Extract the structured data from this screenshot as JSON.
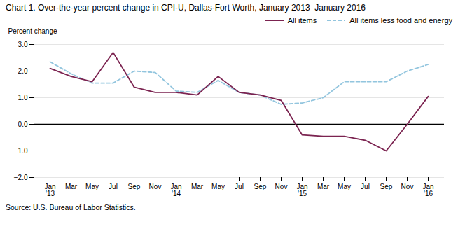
{
  "chart_data": {
    "type": "line",
    "title": "Chart 1. Over-the-year percent change in CPI-U, Dallas-Fort Worth, January 2013–January 2016",
    "ylabel": "Percent change",
    "source": "Source: U.S. Bureau of Labor Statistics.",
    "categories": [
      "Jan\n'13",
      "Mar",
      "May",
      "Jul",
      "Sep",
      "Nov",
      "Jan\n'14",
      "Mar",
      "May",
      "Jul",
      "Sep",
      "Nov",
      "Jan\n'15",
      "Mar",
      "May",
      "Jul",
      "Sep",
      "Nov",
      "Jan\n'16"
    ],
    "series": [
      {
        "name": "All items",
        "color": "#7B2350",
        "line_style": "solid",
        "values": [
          2.1,
          1.8,
          1.6,
          2.7,
          1.4,
          1.2,
          1.2,
          1.1,
          1.8,
          1.2,
          1.1,
          0.9,
          -0.4,
          -0.45,
          -0.45,
          -0.6,
          -1.0,
          0.0,
          1.05
        ]
      },
      {
        "name": "All items less food and energy",
        "color": "#92C5DE",
        "line_style": "dashed",
        "values": [
          2.35,
          1.9,
          1.55,
          1.55,
          2.0,
          1.95,
          1.25,
          1.2,
          1.65,
          1.2,
          1.1,
          0.75,
          0.8,
          1.0,
          1.6,
          1.6,
          1.6,
          2.0,
          2.25
        ]
      }
    ],
    "ylim": [
      -2.0,
      3.0
    ],
    "yticks": [
      -2.0,
      -1.0,
      0.0,
      1.0,
      2.0,
      3.0
    ],
    "grid": true,
    "legend": "upper right"
  }
}
